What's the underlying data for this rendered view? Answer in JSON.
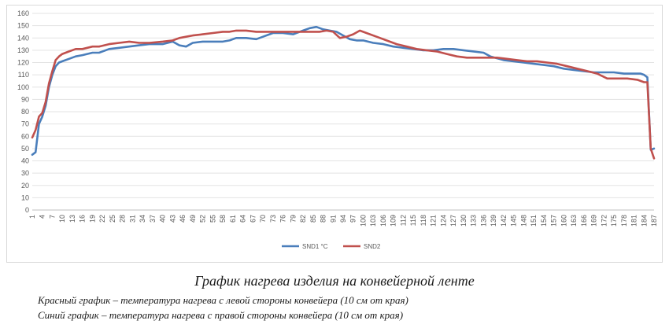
{
  "chart_data": {
    "type": "line",
    "title": "",
    "xlabel": "",
    "ylabel": "",
    "ylim": [
      0,
      160
    ],
    "yticks": [
      0,
      10,
      20,
      30,
      40,
      50,
      60,
      70,
      80,
      90,
      100,
      110,
      120,
      130,
      140,
      150,
      160
    ],
    "xlim": [
      1,
      187
    ],
    "xticks": [
      1,
      4,
      7,
      10,
      13,
      16,
      19,
      22,
      25,
      28,
      31,
      34,
      37,
      40,
      43,
      46,
      49,
      52,
      55,
      58,
      61,
      64,
      67,
      70,
      73,
      76,
      79,
      82,
      85,
      88,
      91,
      94,
      97,
      100,
      103,
      106,
      109,
      112,
      115,
      118,
      121,
      124,
      127,
      130,
      133,
      136,
      139,
      142,
      145,
      148,
      151,
      154,
      157,
      160,
      163,
      166,
      169,
      172,
      175,
      178,
      181,
      184,
      187
    ],
    "grid": true,
    "legend_position": "bottom",
    "series": [
      {
        "name": "SND1 °C",
        "color": "#4a7ebb",
        "x": [
          1,
          2,
          3,
          4,
          5,
          6,
          7,
          8,
          9,
          10,
          12,
          14,
          16,
          19,
          21,
          24,
          27,
          30,
          33,
          36,
          40,
          43,
          45,
          47,
          49,
          52,
          55,
          58,
          60,
          62,
          65,
          68,
          70,
          73,
          76,
          79,
          82,
          84,
          86,
          88,
          90,
          92,
          94,
          96,
          98,
          100,
          103,
          106,
          109,
          112,
          115,
          118,
          121,
          124,
          127,
          130,
          133,
          136,
          138,
          142,
          145,
          148,
          151,
          154,
          157,
          160,
          163,
          166,
          169,
          172,
          175,
          178,
          181,
          183,
          184,
          185,
          186,
          187
        ],
        "y": [
          45,
          47,
          70,
          76,
          85,
          100,
          110,
          117,
          120,
          121,
          123,
          125,
          126,
          128,
          128,
          131,
          132,
          133,
          134,
          135,
          135,
          137,
          134,
          133,
          136,
          137,
          137,
          137,
          138,
          140,
          140,
          139,
          141,
          144,
          144,
          143,
          146,
          148,
          149,
          147,
          146,
          145,
          142,
          139,
          138,
          138,
          136,
          135,
          133,
          132,
          131,
          130,
          130,
          131,
          131,
          130,
          129,
          128,
          125,
          122,
          121,
          120,
          119,
          118,
          117,
          115,
          114,
          113,
          112,
          112,
          112,
          111,
          111,
          111,
          110,
          108,
          49,
          50
        ]
      },
      {
        "name": "SND2",
        "color": "#c0504d",
        "x": [
          1,
          2,
          3,
          4,
          5,
          6,
          7,
          8,
          9,
          10,
          12,
          14,
          16,
          19,
          21,
          24,
          27,
          30,
          33,
          36,
          40,
          43,
          45,
          47,
          49,
          52,
          55,
          58,
          60,
          62,
          65,
          68,
          70,
          73,
          76,
          79,
          82,
          85,
          87,
          89,
          91,
          93,
          95,
          97,
          99,
          101,
          104,
          107,
          110,
          113,
          116,
          119,
          122,
          125,
          128,
          131,
          134,
          137,
          140,
          143,
          146,
          149,
          152,
          155,
          158,
          161,
          164,
          167,
          170,
          173,
          176,
          179,
          182,
          184,
          185,
          186,
          187
        ],
        "y": [
          59,
          65,
          76,
          79,
          88,
          103,
          113,
          122,
          125,
          127,
          129,
          131,
          131,
          133,
          133,
          135,
          136,
          137,
          136,
          136,
          137,
          138,
          140,
          141,
          142,
          143,
          144,
          145,
          145,
          146,
          146,
          145,
          145,
          145,
          145,
          145,
          145,
          145,
          145,
          146,
          145,
          140,
          141,
          143,
          146,
          144,
          141,
          138,
          135,
          133,
          131,
          130,
          129,
          127,
          125,
          124,
          124,
          124,
          124,
          123,
          122,
          121,
          121,
          120,
          119,
          117,
          115,
          113,
          111,
          107,
          107,
          107,
          106,
          104,
          104,
          50,
          42
        ]
      }
    ]
  },
  "caption": {
    "title": "График нагрева изделия на конвейерной ленте",
    "red_line": "Красный график – температура нагрева с левой стороны конвейера (10 см от края)",
    "blue_line": "Синий график – температура нагрева с правой стороны конвейера (10 см от края)"
  }
}
